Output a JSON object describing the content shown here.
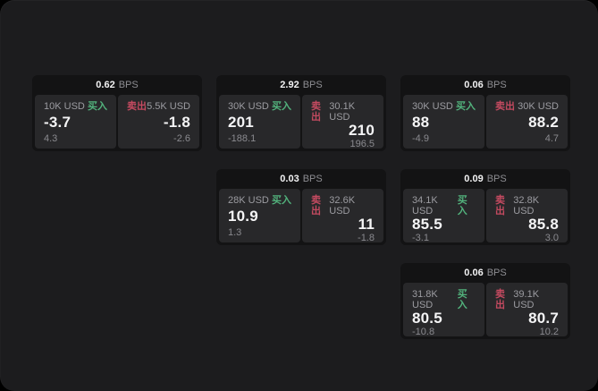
{
  "labels": {
    "buy": "买入",
    "sell": "卖出",
    "bps": "BPS"
  },
  "colors": {
    "backdrop": "#000000",
    "surface": "#1c1c1e",
    "card": "#131314",
    "panel": "#28282a",
    "buy_green": "#52b27c",
    "sell_red": "#c44a60",
    "text_primary": "#f5f5f6",
    "text_secondary": "#9c9ca1",
    "text_muted": "#8a8a8f"
  },
  "cards": [
    {
      "bps_value": "0.62",
      "buy": {
        "size": "10K USD",
        "price": "-3.7",
        "delta": "4.3"
      },
      "sell": {
        "size": "5.5K USD",
        "price": "-1.8",
        "delta": "-2.6"
      }
    },
    {
      "bps_value": "2.92",
      "buy": {
        "size": "30K USD",
        "price": "201",
        "delta": "-188.1"
      },
      "sell": {
        "size": "30.1K USD",
        "price": "210",
        "delta": "196.5"
      }
    },
    {
      "bps_value": "0.06",
      "buy": {
        "size": "30K USD",
        "price": "88",
        "delta": "-4.9"
      },
      "sell": {
        "size": "30K USD",
        "price": "88.2",
        "delta": "4.7"
      }
    },
    {
      "bps_value": "0.03",
      "buy": {
        "size": "28K USD",
        "price": "10.9",
        "delta": "1.3"
      },
      "sell": {
        "size": "32.6K USD",
        "price": "11",
        "delta": "-1.8"
      }
    },
    {
      "bps_value": "0.09",
      "buy": {
        "size": "34.1K USD",
        "price": "85.5",
        "delta": "-3.1"
      },
      "sell": {
        "size": "32.8K USD",
        "price": "85.8",
        "delta": "3.0"
      }
    },
    {
      "bps_value": "0.06",
      "buy": {
        "size": "31.8K USD",
        "price": "80.5",
        "delta": "-10.8"
      },
      "sell": {
        "size": "39.1K USD",
        "price": "80.7",
        "delta": "10.2"
      }
    }
  ]
}
